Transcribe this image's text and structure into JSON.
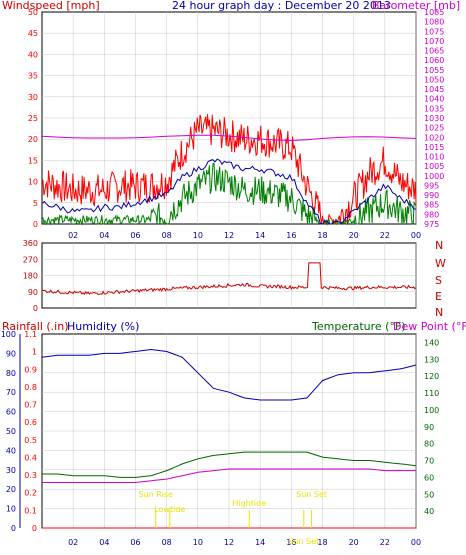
{
  "colors": {
    "wind_avg": "#0000aa",
    "wind_gust": "#ff0000",
    "wind_lull": "#008000",
    "barometer": "#cc00cc",
    "direction": "#cc0000",
    "rainfall": "#ff0000",
    "humidity": "#0000aa",
    "temperature": "#006600",
    "dewpoint": "#cc00cc",
    "sun_marker": "#e6e600",
    "frame": "#000000",
    "grid": "#c8c8c8"
  },
  "chart_data": [
    {
      "type": "line",
      "title": "24 hour graph day : December 20 2013",
      "ylabel_left": "Windspeed [mph]",
      "ylabel_right": "Barometer [mb]",
      "x_hours": [
        0,
        1,
        2,
        3,
        4,
        5,
        6,
        7,
        8,
        9,
        10,
        11,
        12,
        13,
        14,
        15,
        16,
        17,
        18,
        19,
        20,
        21,
        22,
        23,
        24
      ],
      "xticks": [
        "02",
        "04",
        "06",
        "08",
        "10",
        "12",
        "14",
        "16",
        "18",
        "20",
        "22",
        "00"
      ],
      "ylim": [
        0,
        50
      ],
      "yticks": [
        "0",
        "5",
        "10",
        "15",
        "20",
        "25",
        "30",
        "35",
        "40",
        "45",
        "50"
      ],
      "ylim_right": [
        975,
        1085
      ],
      "yticks_right": [
        "975",
        "980",
        "985",
        "990",
        "995",
        "1000",
        "1005",
        "1010",
        "1015",
        "1020",
        "1025",
        "1030",
        "1035",
        "1040",
        "1045",
        "1050",
        "1055",
        "1060",
        "1065",
        "1070",
        "1075",
        "1080",
        "1085"
      ],
      "grid": true,
      "series": [
        {
          "key": "gust",
          "values": [
            10,
            9,
            8,
            8,
            8,
            9,
            9,
            9,
            10,
            17,
            22,
            22,
            21,
            20,
            20,
            19,
            18,
            9,
            1,
            1,
            6,
            12,
            15,
            10,
            8
          ]
        },
        {
          "key": "avg",
          "values": [
            5,
            4,
            3,
            3,
            4,
            4,
            5,
            6,
            7,
            11,
            13,
            15,
            14,
            13,
            13,
            12,
            11,
            5,
            0,
            0,
            3,
            6,
            9,
            6,
            4
          ]
        },
        {
          "key": "lull",
          "values": [
            1,
            1,
            1,
            1,
            1,
            1,
            1,
            1,
            2,
            6,
            9,
            11,
            10,
            8,
            8,
            7,
            6,
            2,
            0,
            0,
            1,
            3,
            5,
            3,
            2
          ]
        },
        {
          "key": "barometer",
          "values": [
            1020.5,
            1020.1,
            1019.8,
            1019.6,
            1019.6,
            1019.6,
            1019.8,
            1020.1,
            1020.5,
            1020.8,
            1021.0,
            1021.0,
            1020.6,
            1019.9,
            1019.1,
            1018.6,
            1018.3,
            1018.7,
            1019.4,
            1019.9,
            1020.2,
            1020.3,
            1020.1,
            1019.7,
            1019.4
          ]
        }
      ]
    },
    {
      "type": "line",
      "ylabel_right_letters": [
        "N",
        "W",
        "S",
        "E",
        "N"
      ],
      "ylim": [
        0,
        360
      ],
      "yticks": [
        "0",
        "90",
        "180",
        "270",
        "360"
      ],
      "grid": true,
      "series": [
        {
          "key": "direction",
          "values": [
            95,
            90,
            85,
            80,
            85,
            90,
            95,
            100,
            105,
            110,
            115,
            120,
            125,
            130,
            120,
            120,
            115,
            115,
            250,
            110,
            110,
            115,
            115,
            115,
            115
          ]
        }
      ]
    },
    {
      "type": "line",
      "ylabel_left": "Rainfall (.in)",
      "ylabel_left2": "Humidity (%)",
      "ylabel_right": "Temperature (°F)",
      "ylabel_right2": "Dew Point (°F)",
      "xticks": [
        "02",
        "04",
        "06",
        "08",
        "10",
        "12",
        "14",
        "16",
        "18",
        "20",
        "22",
        "00"
      ],
      "ylim_rain": [
        0,
        1.1
      ],
      "yticks_rain": [
        "0",
        "0.1",
        "0.2",
        "0.3",
        "0.4",
        "0.5",
        "0.6",
        "0.7",
        "0.8",
        "0.9",
        "1",
        "1.1"
      ],
      "ylim_humidity": [
        0,
        100
      ],
      "yticks_humidity": [
        "0",
        "10",
        "20",
        "30",
        "40",
        "50",
        "60",
        "70",
        "80",
        "90",
        "100"
      ],
      "ylim_temp": [
        30,
        145
      ],
      "yticks_temp": [
        "40",
        "50",
        "60",
        "70",
        "80",
        "90",
        "100",
        "110",
        "120",
        "130",
        "140"
      ],
      "grid": true,
      "series": [
        {
          "key": "rainfall",
          "values": [
            0,
            0,
            0,
            0,
            0,
            0,
            0,
            0,
            0,
            0,
            0,
            0,
            0,
            0,
            0,
            0,
            0,
            0,
            0,
            0,
            0,
            0,
            0,
            0,
            0
          ]
        },
        {
          "key": "humidity",
          "values": [
            88,
            89,
            89,
            89,
            90,
            90,
            91,
            92,
            91,
            88,
            80,
            72,
            70,
            67,
            66,
            66,
            66,
            67,
            76,
            79,
            80,
            80,
            81,
            82,
            84
          ]
        },
        {
          "key": "temperature",
          "values": [
            62,
            62,
            61,
            61,
            61,
            60,
            60,
            61,
            64,
            68,
            71,
            73,
            74,
            75,
            75,
            75,
            75,
            75,
            72,
            71,
            70,
            70,
            69,
            68,
            67
          ]
        },
        {
          "key": "dewpoint",
          "values": [
            57,
            57,
            57,
            57,
            57,
            57,
            57,
            58,
            59,
            61,
            63,
            64,
            65,
            65,
            65,
            65,
            65,
            65,
            65,
            65,
            65,
            65,
            64,
            64,
            64
          ]
        }
      ],
      "annotations": [
        {
          "label": "Sun Rise",
          "hour": 7.3
        },
        {
          "label": "Lowtide",
          "hour": 8.2
        },
        {
          "label": "Hightide",
          "hour": 13.3
        },
        {
          "label": "Sun Set",
          "hour": 17.3
        },
        {
          "label": "Sun Set",
          "hour": 16.8
        }
      ]
    }
  ]
}
